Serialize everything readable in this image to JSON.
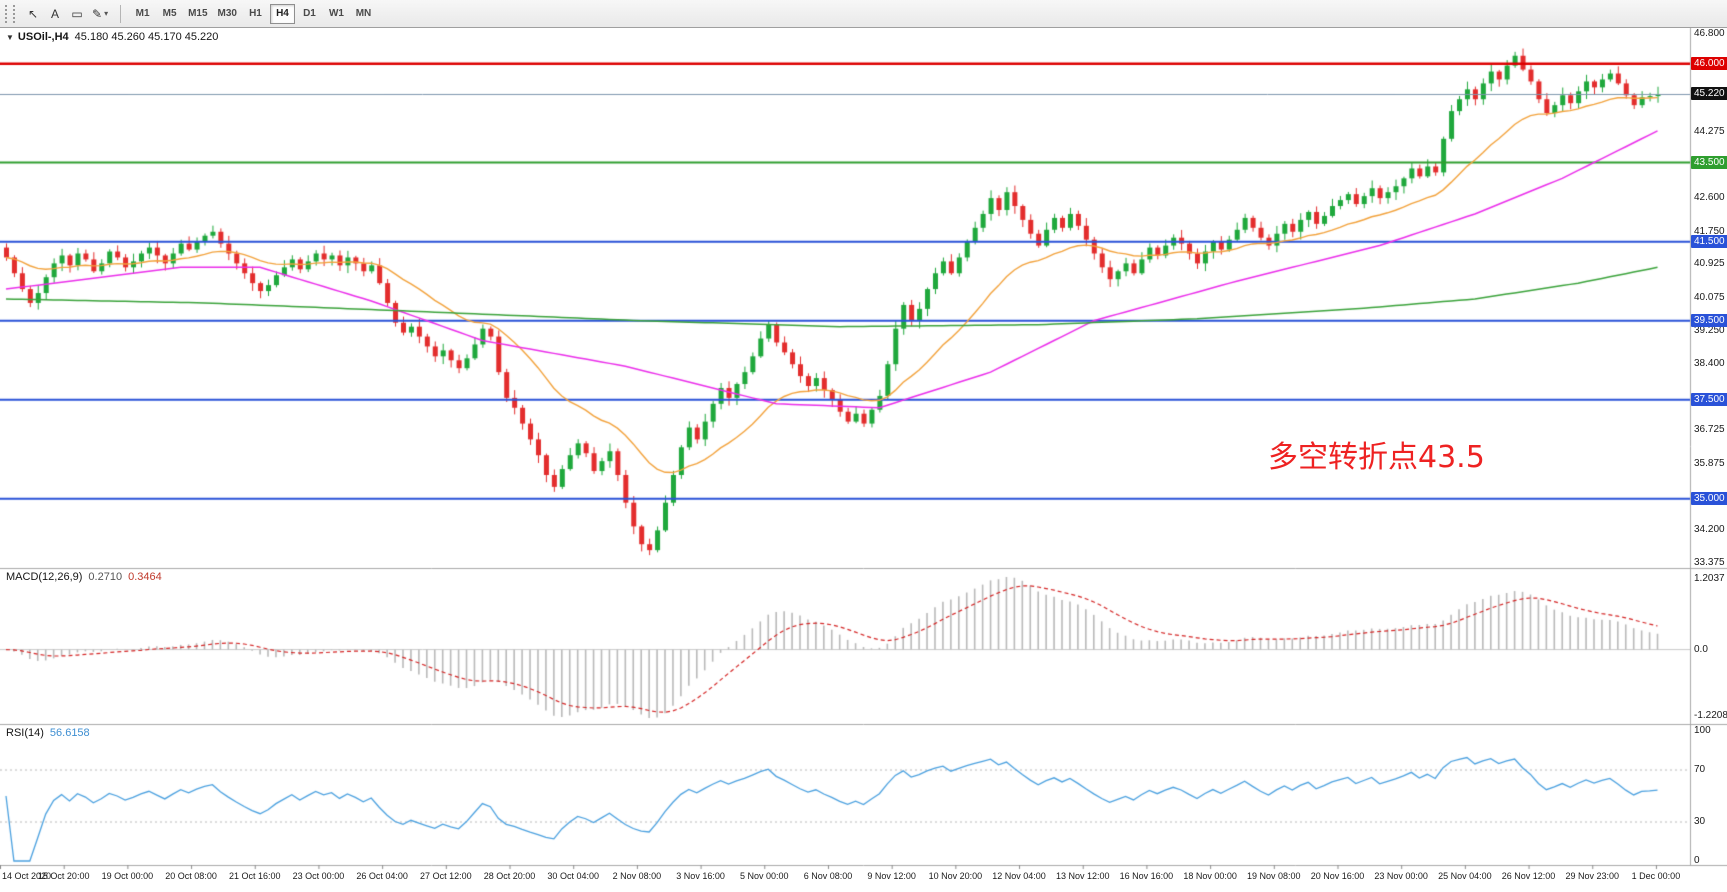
{
  "toolbar": {
    "tools": [
      {
        "name": "cursor-tool",
        "glyph": "↖"
      },
      {
        "name": "text-annotation-tool",
        "glyph": "A"
      },
      {
        "name": "frame-tool",
        "glyph": "▭"
      },
      {
        "name": "indicator-dropdown",
        "glyph": "✎",
        "caret": "▾"
      }
    ],
    "timeframes": [
      "M1",
      "M5",
      "M15",
      "M30",
      "H1",
      "H4",
      "D1",
      "W1",
      "MN"
    ],
    "active_timeframe": "H4"
  },
  "chart": {
    "dropdown_icon": "▼",
    "symbol_period": "USOil-,H4",
    "ohlc_text": "45.180 45.260 45.170 45.220",
    "annotation": {
      "text": "多空转折点43.5",
      "color": "#ee2222"
    }
  },
  "indicators": {
    "macd": {
      "label": "MACD(12,26,9)",
      "value_main": "0.2710",
      "value_signal": "0.3464",
      "fast": 12,
      "slow": 26,
      "signal": 9,
      "scale_labels": {
        "top": "1.2037",
        "zero": "0.0",
        "bottom": "-1.2208"
      }
    },
    "rsi": {
      "label": "RSI(14)",
      "value": "56.6158",
      "period": 14,
      "scale": [
        {
          "v": 100,
          "label": "100"
        },
        {
          "v": 70,
          "label": "70"
        },
        {
          "v": 30,
          "label": "30"
        },
        {
          "v": 0,
          "label": "0"
        }
      ],
      "levels": [
        70,
        30
      ]
    }
  },
  "chart_data": {
    "type": "candlestick",
    "symbol": "USOil",
    "timeframe": "H4",
    "price_range": [
      33.375,
      46.8
    ],
    "first_open": 41.35,
    "closes": [
      41.1,
      40.7,
      40.3,
      39.95,
      40.2,
      40.6,
      40.95,
      41.15,
      40.9,
      41.2,
      41.05,
      40.75,
      40.95,
      41.25,
      41.1,
      40.85,
      41.0,
      41.2,
      41.35,
      41.15,
      40.95,
      41.2,
      41.45,
      41.3,
      41.5,
      41.65,
      41.75,
      41.45,
      41.2,
      40.95,
      40.7,
      40.45,
      40.25,
      40.4,
      40.65,
      40.85,
      41.05,
      40.8,
      41.0,
      41.2,
      41.05,
      41.15,
      40.9,
      41.1,
      40.95,
      40.75,
      40.9,
      40.45,
      39.95,
      39.45,
      39.2,
      39.35,
      39.1,
      38.85,
      38.6,
      38.75,
      38.5,
      38.3,
      38.55,
      38.9,
      39.3,
      39.1,
      38.2,
      37.55,
      37.3,
      36.9,
      36.5,
      36.1,
      35.6,
      35.3,
      35.75,
      36.1,
      36.4,
      36.15,
      35.7,
      35.95,
      36.2,
      35.6,
      34.9,
      34.3,
      33.85,
      33.7,
      34.2,
      34.9,
      35.6,
      36.3,
      36.8,
      36.5,
      36.95,
      37.4,
      37.8,
      37.55,
      37.9,
      38.2,
      38.6,
      39.05,
      39.4,
      38.95,
      38.7,
      38.4,
      38.1,
      37.85,
      38.05,
      37.75,
      37.5,
      37.2,
      36.95,
      37.15,
      36.9,
      37.25,
      37.6,
      38.4,
      39.3,
      39.9,
      39.5,
      39.8,
      40.3,
      40.7,
      41.0,
      40.7,
      41.1,
      41.5,
      41.85,
      42.2,
      42.6,
      42.3,
      42.75,
      42.4,
      42.05,
      41.7,
      41.4,
      41.8,
      42.1,
      41.85,
      42.2,
      41.9,
      41.55,
      41.2,
      40.85,
      40.55,
      40.75,
      40.95,
      40.7,
      41.05,
      41.35,
      41.15,
      41.4,
      41.6,
      41.45,
      41.2,
      40.95,
      41.25,
      41.5,
      41.3,
      41.55,
      41.8,
      42.1,
      41.85,
      41.6,
      41.4,
      41.7,
      41.95,
      41.75,
      42.05,
      42.25,
      41.95,
      42.15,
      42.4,
      42.55,
      42.7,
      42.45,
      42.65,
      42.85,
      42.6,
      42.75,
      42.9,
      43.1,
      43.35,
      43.15,
      43.4,
      43.25,
      44.1,
      44.8,
      45.1,
      45.35,
      45.1,
      45.5,
      45.8,
      45.6,
      45.95,
      46.2,
      45.85,
      45.55,
      45.1,
      44.75,
      44.95,
      45.2,
      45.0,
      45.3,
      45.55,
      45.4,
      45.6,
      45.75,
      45.5,
      45.2,
      44.95,
      45.15,
      45.18,
      45.22
    ],
    "wick_pattern": [
      0.15,
      0.08,
      0.22,
      0.12,
      0.28,
      0.1,
      0.18,
      0.24,
      0.06,
      0.2,
      0.14,
      0.26
    ],
    "overlays": {
      "ma_fast": {
        "type": "ema",
        "period": 20,
        "color": "#f2a23c"
      },
      "ma_mid": {
        "type": "anchors",
        "color": "#ea2dea",
        "points": [
          [
            0,
            40.3
          ],
          [
            12,
            40.6
          ],
          [
            22,
            40.85
          ],
          [
            32,
            40.85
          ],
          [
            46,
            40.0
          ],
          [
            60,
            39.0
          ],
          [
            78,
            38.35
          ],
          [
            97,
            37.4
          ],
          [
            110,
            37.3
          ],
          [
            124,
            38.2
          ],
          [
            137,
            39.5
          ],
          [
            155,
            40.5
          ],
          [
            173,
            41.4
          ],
          [
            185,
            42.2
          ],
          [
            196,
            43.1
          ],
          [
            208,
            44.3
          ]
        ]
      },
      "ma_slow": {
        "type": "anchors",
        "color": "#3aa23a",
        "points": [
          [
            0,
            40.05
          ],
          [
            25,
            39.95
          ],
          [
            50,
            39.75
          ],
          [
            80,
            39.5
          ],
          [
            105,
            39.35
          ],
          [
            130,
            39.4
          ],
          [
            150,
            39.55
          ],
          [
            170,
            39.8
          ],
          [
            185,
            40.05
          ],
          [
            198,
            40.45
          ],
          [
            208,
            40.85
          ]
        ]
      }
    },
    "hlines": [
      {
        "value": 46.0,
        "label": "46.000",
        "color": "#dd0000",
        "width": 2.5
      },
      {
        "value": 45.22,
        "label": "45.220",
        "color": "#111111",
        "width": 1,
        "line_color": "#7d96ad",
        "current": true
      },
      {
        "value": 43.5,
        "label": "43.500",
        "color": "#2f9e2f",
        "width": 2
      },
      {
        "value": 41.5,
        "label": "41.500",
        "color": "#2a52d8",
        "width": 2
      },
      {
        "value": 39.5,
        "label": "39.500",
        "color": "#2a52d8",
        "width": 2
      },
      {
        "value": 37.5,
        "label": "37.500",
        "color": "#2a52d8",
        "width": 2
      },
      {
        "value": 35.0,
        "label": "35.000",
        "color": "#2a52d8",
        "width": 2
      }
    ],
    "price_ticks": [
      {
        "v": 46.8,
        "label": "46.800"
      },
      {
        "v": 44.275,
        "label": "44.275"
      },
      {
        "v": 42.6,
        "label": "42.600"
      },
      {
        "v": 41.75,
        "label": "41.750"
      },
      {
        "v": 40.925,
        "label": "40.925"
      },
      {
        "v": 40.075,
        "label": "40.075"
      },
      {
        "v": 39.25,
        "label": "39.250"
      },
      {
        "v": 38.4,
        "label": "38.400"
      },
      {
        "v": 36.725,
        "label": "36.725"
      },
      {
        "v": 35.875,
        "label": "35.875"
      },
      {
        "v": 34.2,
        "label": "34.200"
      },
      {
        "v": 33.375,
        "label": "33.375"
      }
    ],
    "time_labels": [
      "14 Oct 2020",
      "15 Oct 20:00",
      "19 Oct 00:00",
      "20 Oct 08:00",
      "21 Oct 16:00",
      "23 Oct 00:00",
      "26 Oct 04:00",
      "27 Oct 12:00",
      "28 Oct 20:00",
      "30 Oct 04:00",
      "2 Nov 08:00",
      "3 Nov 16:00",
      "5 Nov 00:00",
      "6 Nov 08:00",
      "9 Nov 12:00",
      "10 Nov 20:00",
      "12 Nov 04:00",
      "13 Nov 12:00",
      "16 Nov 16:00",
      "18 Nov 00:00",
      "19 Nov 08:00",
      "20 Nov 16:00",
      "23 Nov 00:00",
      "25 Nov 04:00",
      "26 Nov 12:00",
      "29 Nov 23:00",
      "1 Dec 00:00"
    ],
    "colors": {
      "up": "#1fa83c",
      "down": "#e32d2d",
      "macd_hist": "#b9b9b9",
      "macd_signal": "#d42525",
      "rsi_line": "#4aa0df"
    }
  }
}
